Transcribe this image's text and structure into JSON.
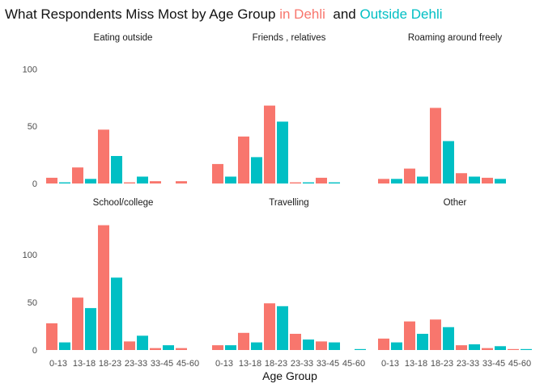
{
  "chart_data": {
    "type": "bar",
    "title": {
      "prefix": "What Respondents Miss Most by Age Group ",
      "in_label": "in Dehli",
      "middle": "  and ",
      "out_label": "Outside Dehli"
    },
    "xlabel": "Age Group",
    "ylabel": "",
    "categories": [
      "0-13",
      "13-18",
      "18-23",
      "23-33",
      "33-45",
      "45-60"
    ],
    "colors": {
      "in": "#F8766D",
      "out": "#00BFC4"
    },
    "rows": [
      {
        "ylim": [
          0,
          115
        ],
        "yticks": [
          0,
          50,
          100
        ]
      },
      {
        "ylim": [
          0,
          140
        ],
        "yticks": [
          0,
          50,
          100
        ]
      }
    ],
    "panels": [
      {
        "name": "Eating outside",
        "row": 0,
        "series": [
          {
            "key": "in",
            "values": [
              5,
              14,
              47,
              1,
              2,
              2
            ]
          },
          {
            "key": "out",
            "values": [
              1,
              4,
              24,
              6,
              0,
              0
            ]
          }
        ]
      },
      {
        "name": "Friends , relatives",
        "row": 0,
        "series": [
          {
            "key": "in",
            "values": [
              17,
              41,
              68,
              1,
              5,
              0
            ]
          },
          {
            "key": "out",
            "values": [
              6,
              23,
              54,
              1,
              1,
              0
            ]
          }
        ]
      },
      {
        "name": "Roaming around freely",
        "row": 0,
        "series": [
          {
            "key": "in",
            "values": [
              4,
              13,
              66,
              9,
              5,
              0
            ]
          },
          {
            "key": "out",
            "values": [
              4,
              6,
              37,
              6,
              4,
              0
            ]
          }
        ]
      },
      {
        "name": "School/college",
        "row": 1,
        "series": [
          {
            "key": "in",
            "values": [
              28,
              55,
              131,
              9,
              2,
              2
            ]
          },
          {
            "key": "out",
            "values": [
              8,
              44,
              76,
              15,
              5,
              0
            ]
          }
        ]
      },
      {
        "name": "Travelling",
        "row": 1,
        "series": [
          {
            "key": "in",
            "values": [
              5,
              18,
              49,
              17,
              9,
              0
            ]
          },
          {
            "key": "out",
            "values": [
              5,
              8,
              46,
              11,
              8,
              1
            ]
          }
        ]
      },
      {
        "name": "Other",
        "row": 1,
        "series": [
          {
            "key": "in",
            "values": [
              12,
              30,
              32,
              5,
              2,
              1
            ]
          },
          {
            "key": "out",
            "values": [
              8,
              17,
              24,
              6,
              4,
              1
            ]
          }
        ]
      }
    ]
  }
}
